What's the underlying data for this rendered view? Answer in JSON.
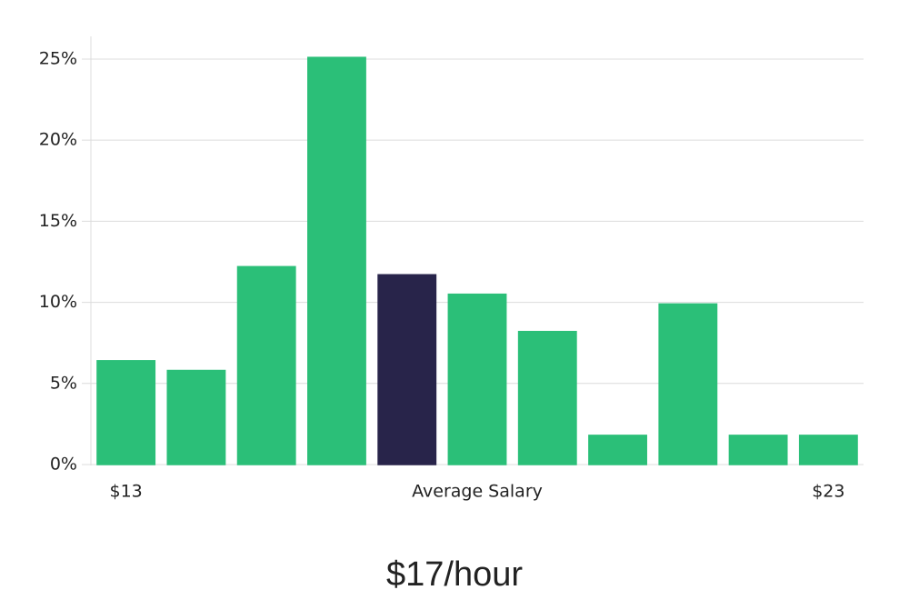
{
  "chart_data": {
    "type": "bar",
    "categories": [
      "$13",
      null,
      null,
      null,
      null,
      null,
      null,
      null,
      null,
      null,
      "$23"
    ],
    "values": [
      6.4,
      5.8,
      12.2,
      25.1,
      11.7,
      10.5,
      8.2,
      1.8,
      9.9,
      1.8,
      1.8
    ],
    "colors": [
      "#2bbf78",
      "#2bbf78",
      "#2bbf78",
      "#2bbf78",
      "#28244a",
      "#2bbf78",
      "#2bbf78",
      "#2bbf78",
      "#2bbf78",
      "#2bbf78",
      "#2bbf78"
    ],
    "ylim": [
      0,
      26.4
    ],
    "yticks": [
      {
        "value": 0,
        "label": "0%"
      },
      {
        "value": 5,
        "label": "5%"
      },
      {
        "value": 10,
        "label": "10%"
      },
      {
        "value": 15,
        "label": "15%"
      },
      {
        "value": 20,
        "label": "20%"
      },
      {
        "value": 25,
        "label": "25%"
      }
    ],
    "grid": true,
    "annotation": "Average Salary",
    "headline": "$17/hour"
  }
}
